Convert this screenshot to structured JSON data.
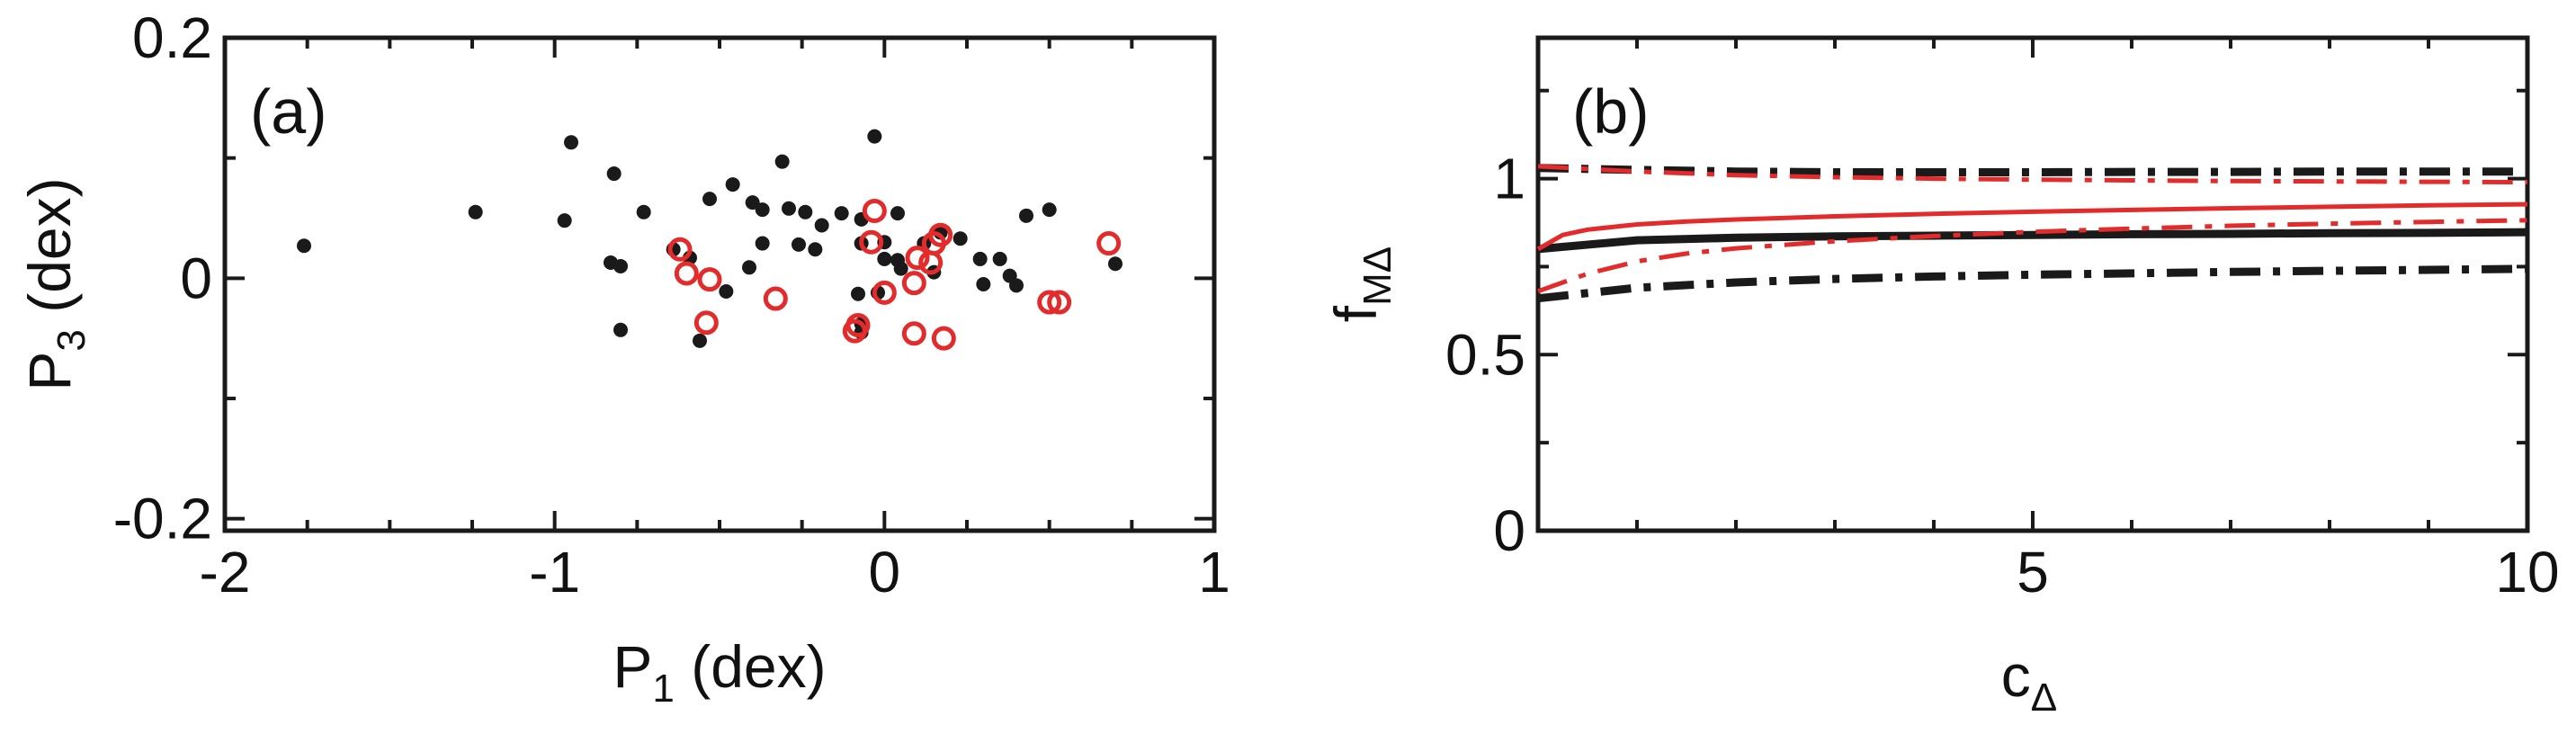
{
  "chart_data": [
    {
      "type": "scatter",
      "panel_label": "(a)",
      "xlabel": "P",
      "xlabel_sub": "1",
      "xlabel_unit": " (dex)",
      "ylabel": "P",
      "ylabel_sub": "3",
      "ylabel_unit": " (dex)",
      "xlim": [
        -2,
        1
      ],
      "ylim": [
        -0.21,
        0.2
      ],
      "xticks": [
        -2,
        -1,
        0,
        1
      ],
      "xtick_labels": [
        "-2",
        "-1",
        "0",
        "1"
      ],
      "yticks": [
        -0.2,
        0,
        0.2
      ],
      "ytick_labels": [
        "-0.2",
        "0",
        "0.2"
      ],
      "grid": false,
      "series": [
        {
          "marker": "filled-circle",
          "color": "#1a1a1a",
          "points": [
            [
              -1.76,
              0.027
            ],
            [
              -1.24,
              0.055
            ],
            [
              -0.95,
              0.113
            ],
            [
              -0.97,
              0.048
            ],
            [
              -0.82,
              0.087
            ],
            [
              -0.83,
              0.013
            ],
            [
              -0.8,
              0.01
            ],
            [
              -0.8,
              -0.043
            ],
            [
              -0.73,
              0.055
            ],
            [
              -0.64,
              0.024
            ],
            [
              -0.53,
              0.066
            ],
            [
              -0.46,
              0.078
            ],
            [
              -0.4,
              0.063
            ],
            [
              -0.37,
              0.057
            ],
            [
              -0.31,
              0.097
            ],
            [
              -0.29,
              0.058
            ],
            [
              -0.24,
              0.055
            ],
            [
              -0.19,
              0.044
            ],
            [
              -0.13,
              0.054
            ],
            [
              -0.07,
              0.029
            ],
            [
              -0.07,
              0.049
            ],
            [
              -0.07,
              -0.045
            ],
            [
              -0.07,
              -0.038
            ],
            [
              -0.08,
              -0.013
            ],
            [
              -0.21,
              0.024
            ],
            [
              -0.26,
              0.028
            ],
            [
              -0.41,
              0.009
            ],
            [
              -0.37,
              0.029
            ],
            [
              -0.48,
              -0.011
            ],
            [
              -0.56,
              -0.052
            ],
            [
              -0.59,
              0.017
            ],
            [
              -0.03,
              0.118
            ],
            [
              0.0,
              0.03
            ],
            [
              0.04,
              0.054
            ],
            [
              0.04,
              0.015
            ],
            [
              0.05,
              0.008
            ],
            [
              0.12,
              0.029
            ],
            [
              0.17,
              0.038
            ],
            [
              0.23,
              0.033
            ],
            [
              0.29,
              0.016
            ],
            [
              0.3,
              -0.005
            ],
            [
              0.35,
              0.016
            ],
            [
              0.38,
              0.002
            ],
            [
              0.4,
              -0.006
            ],
            [
              0.43,
              0.052
            ],
            [
              0.5,
              0.057
            ],
            [
              0.7,
              0.012
            ],
            [
              0.0,
              0.016
            ],
            [
              -0.02,
              -0.012
            ],
            [
              0.15,
              0.005
            ]
          ]
        },
        {
          "marker": "open-circle",
          "color": "#e32b2b",
          "points": [
            [
              -0.62,
              0.024
            ],
            [
              -0.6,
              0.004
            ],
            [
              -0.53,
              -0.001
            ],
            [
              -0.54,
              -0.037
            ],
            [
              -0.33,
              -0.017
            ],
            [
              -0.08,
              -0.039
            ],
            [
              -0.09,
              -0.044
            ],
            [
              -0.03,
              0.056
            ],
            [
              -0.04,
              0.03
            ],
            [
              0.0,
              -0.012
            ],
            [
              0.09,
              -0.046
            ],
            [
              0.09,
              -0.004
            ],
            [
              0.1,
              0.017
            ],
            [
              0.14,
              0.013
            ],
            [
              0.15,
              0.029
            ],
            [
              0.17,
              0.036
            ],
            [
              0.18,
              -0.05
            ],
            [
              0.5,
              -0.02
            ],
            [
              0.53,
              -0.02
            ],
            [
              0.68,
              0.029
            ]
          ]
        }
      ]
    },
    {
      "type": "line",
      "panel_label": "(b)",
      "xlabel": "c",
      "xlabel_sub": "Δ",
      "ylabel": "f",
      "ylabel_sub": "MΔ",
      "xlim": [
        0,
        10
      ],
      "ylim": [
        0,
        1.4
      ],
      "xticks": [
        5,
        10
      ],
      "xtick_labels": [
        "5",
        "10"
      ],
      "yticks": [
        0,
        0.5,
        1
      ],
      "ytick_labels": [
        "0",
        "0.5",
        "1"
      ],
      "grid": false,
      "series": [
        {
          "style": "solid-thick",
          "color": "#1a1a1a",
          "x": [
            0,
            1,
            2,
            3,
            4,
            5,
            6,
            7,
            8,
            9,
            10
          ],
          "y": [
            0.8,
            0.825,
            0.832,
            0.836,
            0.838,
            0.84,
            0.842,
            0.843,
            0.845,
            0.846,
            0.848
          ]
        },
        {
          "style": "dashdot-thick",
          "color": "#1a1a1a",
          "x": [
            0,
            1,
            2,
            3,
            4,
            5,
            6,
            7,
            8,
            9,
            10
          ],
          "y": [
            1.03,
            1.025,
            1.02,
            1.018,
            1.018,
            1.018,
            1.019,
            1.019,
            1.02,
            1.02,
            1.02
          ]
        },
        {
          "style": "dashdot-thick",
          "color": "#1a1a1a",
          "x": [
            0,
            1,
            2,
            3,
            4,
            5,
            6,
            7,
            8,
            9,
            10
          ],
          "y": [
            0.66,
            0.69,
            0.705,
            0.715,
            0.722,
            0.727,
            0.731,
            0.735,
            0.738,
            0.741,
            0.744
          ]
        },
        {
          "style": "solid-thin",
          "color": "#e32b2b",
          "x": [
            0,
            0.25,
            0.5,
            1,
            1.5,
            2,
            3,
            4,
            5,
            6,
            7,
            8,
            9,
            10
          ],
          "y": [
            0.8,
            0.84,
            0.855,
            0.87,
            0.878,
            0.884,
            0.893,
            0.9,
            0.906,
            0.911,
            0.916,
            0.92,
            0.924,
            0.927
          ]
        },
        {
          "style": "dashdot-thin",
          "color": "#e32b2b",
          "x": [
            0,
            0.25,
            0.5,
            1,
            1.5,
            2,
            3,
            4,
            5,
            6,
            7,
            8,
            9,
            10
          ],
          "y": [
            0.68,
            0.705,
            0.73,
            0.765,
            0.787,
            0.802,
            0.822,
            0.837,
            0.849,
            0.858,
            0.866,
            0.872,
            0.877,
            0.882
          ]
        },
        {
          "style": "dashdot-thin",
          "color": "#e32b2b",
          "x": [
            0,
            1,
            2,
            3,
            4,
            5,
            6,
            7,
            8,
            9,
            10
          ],
          "y": [
            1.035,
            1.02,
            1.01,
            1.004,
            1.0,
            0.997,
            0.995,
            0.993,
            0.992,
            0.991,
            0.99
          ]
        }
      ]
    }
  ]
}
